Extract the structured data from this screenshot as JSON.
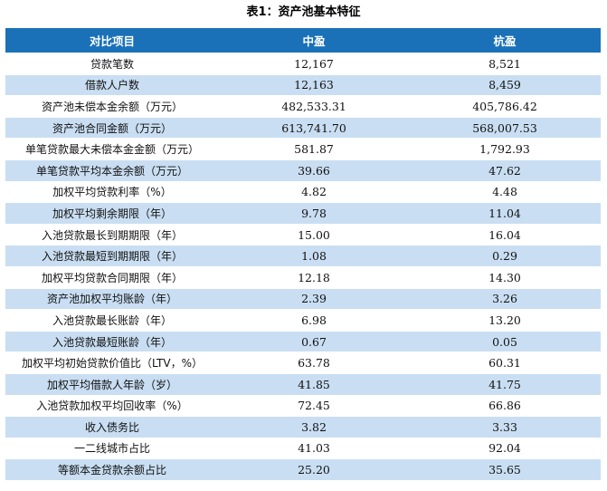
{
  "title": "表1：资产池基本特征",
  "table": {
    "headers": [
      "对比项目",
      "中盈",
      "杭盈"
    ],
    "rows": [
      [
        "贷款笔数",
        "12,167",
        "8,521"
      ],
      [
        "借款人户数",
        "12,163",
        "8,459"
      ],
      [
        "资产池未偿本金余额（万元）",
        "482,533.31",
        "405,786.42"
      ],
      [
        "资产池合同金额（万元）",
        "613,741.70",
        "568,007.53"
      ],
      [
        "单笔贷款最大未偿本金金额（万元）",
        "581.87",
        "1,792.93"
      ],
      [
        "单笔贷款平均本金余额（万元）",
        "39.66",
        "47.62"
      ],
      [
        "加权平均贷款利率（%）",
        "4.82",
        "4.48"
      ],
      [
        "加权平均剩余期限（年）",
        "9.78",
        "11.04"
      ],
      [
        "入池贷款最长到期期限（年）",
        "15.00",
        "16.04"
      ],
      [
        "入池贷款最短到期期限（年）",
        "1.08",
        "0.29"
      ],
      [
        "加权平均贷款合同期限（年）",
        "12.18",
        "14.30"
      ],
      [
        "资产池加权平均账龄（年）",
        "2.39",
        "3.26"
      ],
      [
        "入池贷款最长账龄（年）",
        "6.98",
        "13.20"
      ],
      [
        "入池贷款最短账龄（年）",
        "0.67",
        "0.05"
      ],
      [
        "加权平均初始贷款价值比（LTV，%）",
        "63.78",
        "60.31"
      ],
      [
        "加权平均借款人年龄（岁）",
        "41.85",
        "41.75"
      ],
      [
        "入池贷款加权平均回收率（%）",
        "72.45",
        "66.86"
      ],
      [
        "收入债务比",
        "3.82",
        "3.33"
      ],
      [
        "一二线城市占比",
        "41.03",
        "92.04"
      ],
      [
        "等额本金贷款余额占比",
        "25.20",
        "35.65"
      ]
    ]
  },
  "colors": {
    "header_bg": "#1a71b8",
    "stripe_bg": "#c9def2"
  }
}
